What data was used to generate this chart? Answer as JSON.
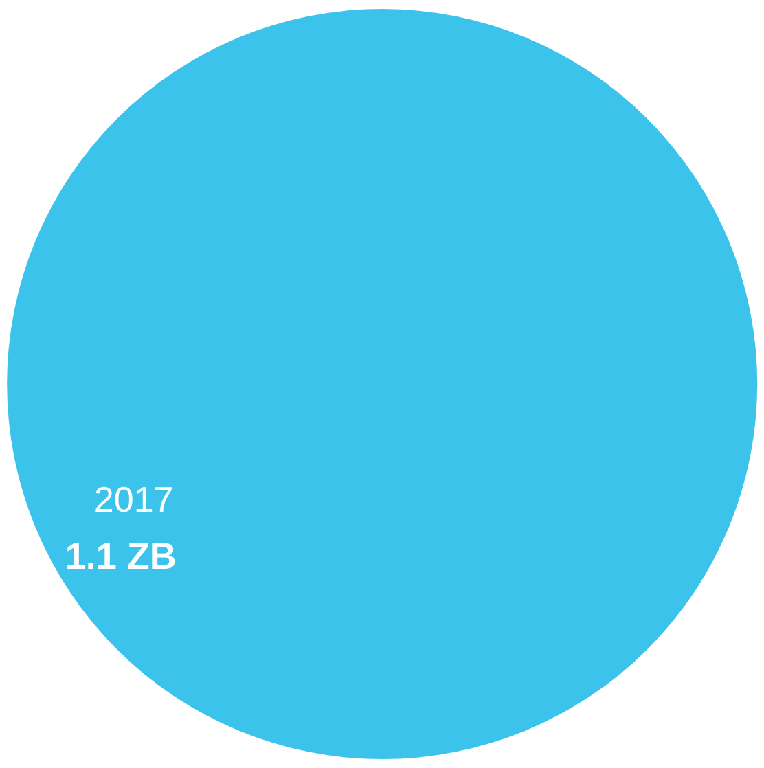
{
  "chart_data": {
    "type": "other",
    "categories": [
      "2017"
    ],
    "values": [
      1.1
    ],
    "value_labels": [
      "1.1 ZB"
    ],
    "colors": [
      "#3bc3ec"
    ]
  }
}
